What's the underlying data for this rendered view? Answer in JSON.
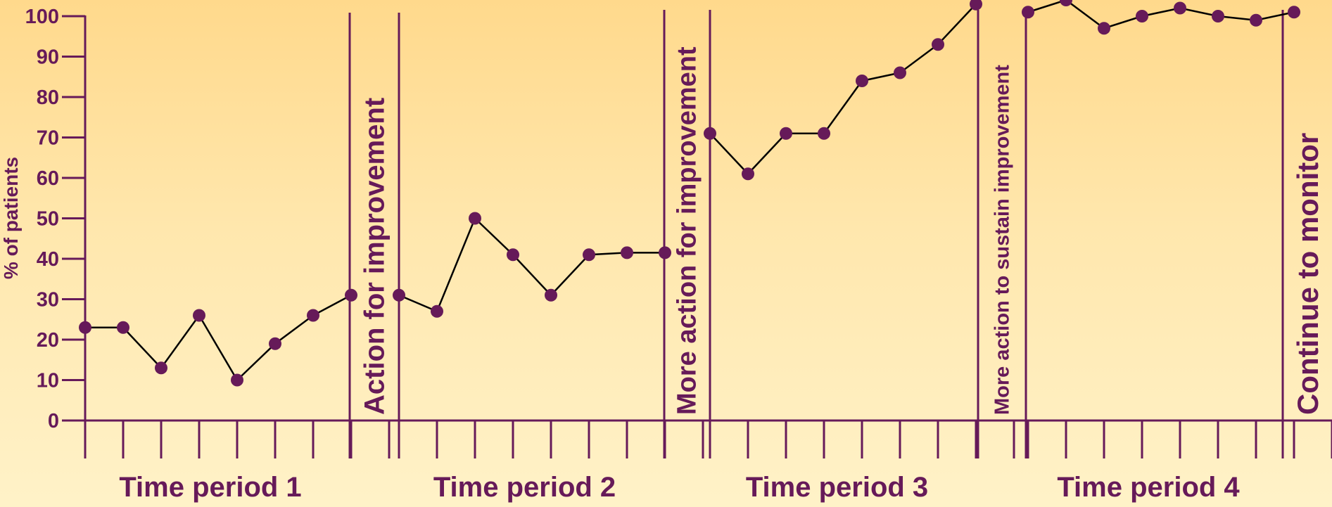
{
  "chart_data": {
    "type": "line",
    "ylabel": "% of patients",
    "ylim": [
      0,
      100
    ],
    "yticks": [
      "0",
      "10",
      "20",
      "30",
      "40",
      "50",
      "60",
      "70",
      "80",
      "90",
      "100"
    ],
    "grid": false,
    "legend": "none",
    "colors": {
      "ink": "#661a59",
      "line": "#000000"
    },
    "periods": [
      {
        "label": "Time period 1",
        "values": [
          23,
          23,
          13,
          26,
          10,
          19,
          26,
          31
        ]
      },
      {
        "label": "Time period 2",
        "values": [
          31,
          27,
          50,
          41,
          31,
          41,
          41.5,
          41.5
        ]
      },
      {
        "label": "Time period 3",
        "values": [
          71,
          61,
          71,
          71,
          84,
          86,
          93,
          103
        ]
      },
      {
        "label": "Time period 4",
        "values": [
          101,
          104,
          97,
          100,
          102,
          100,
          99,
          101
        ]
      }
    ],
    "actions": [
      "Action for improvement",
      "More action for improvement",
      "More action to sustain improvement",
      "Continue to monitor"
    ]
  }
}
